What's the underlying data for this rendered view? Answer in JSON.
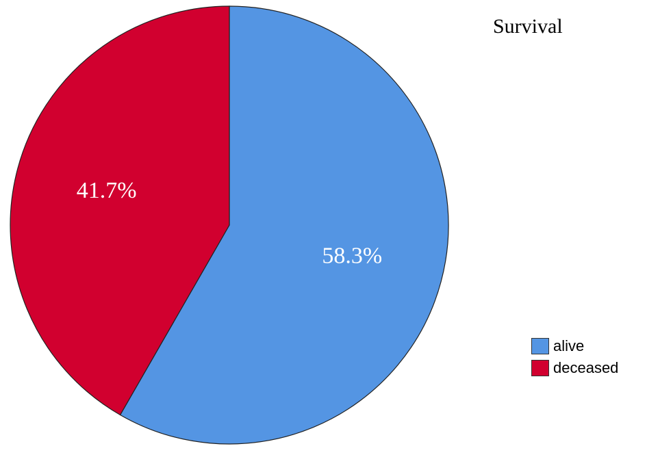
{
  "chart_data": {
    "type": "pie",
    "title": "Survival",
    "categories": [
      "alive",
      "deceased"
    ],
    "values": [
      58.3,
      41.7
    ],
    "data_labels": [
      "58.3%",
      "41.7%"
    ],
    "colors": [
      "#5495E3",
      "#D1002F"
    ],
    "legend_position": "bottom-right",
    "start": "top",
    "direction": "clockwise"
  },
  "legend": {
    "items": [
      {
        "label": "alive",
        "color": "#5495E3"
      },
      {
        "label": "deceased",
        "color": "#D1002F"
      }
    ]
  }
}
